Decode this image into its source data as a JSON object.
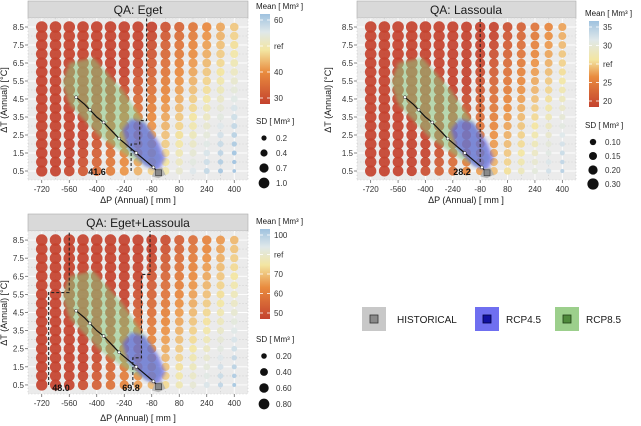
{
  "chart_data": [
    {
      "type": "scatter",
      "title": "QA: Eget",
      "xlabel": "ΔP (Annual) [ mm ]",
      "ylabel": "ΔT (Annual) [°C]",
      "x_ticks": [
        -720,
        -560,
        -400,
        -240,
        -80,
        80,
        240,
        400
      ],
      "y_ticks": [
        0.5,
        1.5,
        2.5,
        3.5,
        4.5,
        5.5,
        6.5,
        7.5,
        8.5
      ],
      "xlim": [
        -800,
        480
      ],
      "ylim": [
        0,
        9
      ],
      "grid_x_step": 80,
      "grid_y_step": 0.5,
      "color_legend": {
        "title": "Mean [ Mm³ ]",
        "ticks": [
          "60",
          "ref",
          "40",
          "30"
        ],
        "range": [
          26,
          65
        ],
        "ref_value": 52
      },
      "size_legend": {
        "title": "SD [ Mm³ ]",
        "labels": [
          "0.2",
          "0.4",
          "0.7",
          "1.0"
        ],
        "values": [
          0.2,
          0.4,
          0.7,
          1.0
        ],
        "range": [
          0.1,
          1.2
        ]
      },
      "mean_model": {
        "ref": 52,
        "a": 0.042,
        "b": -2.7,
        "min": 26,
        "max": 65
      },
      "sd_model": {
        "base": 0.45,
        "a": -0.0009,
        "b": 0.06,
        "min": 0.1,
        "max": 1.2
      },
      "threshold_label": "41.6",
      "threshold_path": [
        [
          -200,
          0.5
        ],
        [
          -200,
          2.0
        ],
        [
          -150,
          2.0
        ],
        [
          -150,
          3.3
        ],
        [
          -110,
          3.3
        ],
        [
          -110,
          9.2
        ]
      ]
    },
    {
      "type": "scatter",
      "title": "QA: Lassoula",
      "xlabel": "ΔP (Annual) [ mm ]",
      "ylabel": "ΔT (Annual) [°C]",
      "x_ticks": [
        -720,
        -560,
        -400,
        -240,
        -80,
        80,
        240,
        400
      ],
      "y_ticks": [
        0.5,
        1.5,
        2.5,
        3.5,
        4.5,
        5.5,
        6.5,
        7.5,
        8.5
      ],
      "xlim": [
        -800,
        480
      ],
      "ylim": [
        0,
        9
      ],
      "grid_x_step": 80,
      "grid_y_step": 0.5,
      "color_legend": {
        "title": "Mean [ Mm³ ]",
        "ticks": [
          "35",
          "30",
          "ref",
          "25",
          "20"
        ],
        "range": [
          17,
          37
        ],
        "ref_value": 27.5
      },
      "size_legend": {
        "title": "SD [ Mm³ ]",
        "labels": [
          "0.10",
          "0.15",
          "0.20",
          "0.30"
        ],
        "values": [
          0.1,
          0.15,
          0.2,
          0.3
        ],
        "range": [
          0.05,
          0.32
        ]
      },
      "mean_model": {
        "ref": 27.5,
        "a": 0.022,
        "b": -1.3,
        "min": 17,
        "max": 37
      },
      "sd_model": {
        "base": 0.14,
        "a": -0.00022,
        "b": 0.012,
        "min": 0.05,
        "max": 0.32
      },
      "threshold_label": "28.2",
      "threshold_path": [
        [
          -80,
          1.0
        ],
        [
          -80,
          9.2
        ]
      ]
    },
    {
      "type": "scatter",
      "title": "QA: Eget+Lassoula",
      "xlabel": "ΔP (Annual) [ mm ]",
      "ylabel": "ΔT (Annual) [°C]",
      "x_ticks": [
        -720,
        -560,
        -400,
        -240,
        -80,
        80,
        240,
        400
      ],
      "y_ticks": [
        0.5,
        1.5,
        2.5,
        3.5,
        4.5,
        5.5,
        6.5,
        7.5,
        8.5
      ],
      "xlim": [
        -800,
        480
      ],
      "ylim": [
        0,
        9
      ],
      "grid_x_step": 80,
      "grid_y_step": 0.5,
      "color_legend": {
        "title": "Mean [ Mm³ ]",
        "ticks": [
          "100",
          "ref",
          "70",
          "60",
          "50"
        ],
        "range": [
          43,
          105
        ],
        "ref_value": 80
      },
      "size_legend": {
        "title": "SD [ Mm³ ]",
        "labels": [
          "0.20",
          "0.40",
          "0.60",
          "0.80"
        ],
        "values": [
          0.2,
          0.4,
          0.6,
          0.8
        ],
        "range": [
          0.1,
          0.95
        ]
      },
      "mean_model": {
        "ref": 80,
        "a": 0.065,
        "b": -4.0,
        "min": 43,
        "max": 105
      },
      "sd_model": {
        "base": 0.38,
        "a": -0.0007,
        "b": 0.045,
        "min": 0.1,
        "max": 0.95
      },
      "threshold_label": "69.8",
      "threshold_path": [
        [
          -190,
          0.5
        ],
        [
          -190,
          2.0
        ],
        [
          -140,
          2.0
        ],
        [
          -140,
          6.6
        ],
        [
          -90,
          6.6
        ],
        [
          -90,
          9.2
        ]
      ],
      "threshold_label_2": "48.0",
      "threshold_path_2": [
        [
          -680,
          0.5
        ],
        [
          -680,
          5.6
        ],
        [
          -560,
          5.6
        ],
        [
          -560,
          9.2
        ]
      ]
    }
  ],
  "scenario_legend": {
    "items": [
      {
        "label": "HISTORICAL",
        "fill": "#c8c8c8",
        "marker": "#6e6e6e"
      },
      {
        "label": "RCP4.5",
        "fill": "#6f6ff0",
        "marker": "#1515a0"
      },
      {
        "label": "RCP8.5",
        "fill": "#9ccf8c",
        "marker": "#3f7a30"
      }
    ]
  },
  "colors": {
    "panel_bg": "#ebebeb",
    "strip_bg": "#d9d9d9",
    "grid": "#ffffff",
    "dotgrid": "#b3b3b3",
    "mean_low": "#c4422e",
    "mean_mid": "#f3e6a2",
    "mean_high": "#9fc2df",
    "hist_region": "#b0b0b0",
    "rcp45_region": "#5555ee",
    "rcp85_region": "#8dc77d",
    "threshold_line": "#222222"
  }
}
